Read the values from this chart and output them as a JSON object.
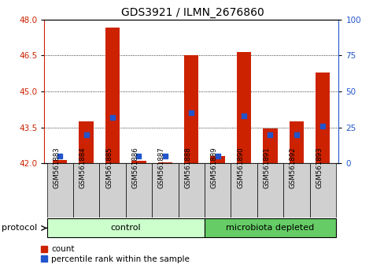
{
  "title": "GDS3921 / ILMN_2676860",
  "samples": [
    "GSM561883",
    "GSM561884",
    "GSM561885",
    "GSM561886",
    "GSM561887",
    "GSM561888",
    "GSM561889",
    "GSM561890",
    "GSM561891",
    "GSM561892",
    "GSM561893"
  ],
  "count_values": [
    42.15,
    43.75,
    47.65,
    42.1,
    42.05,
    46.5,
    42.3,
    46.65,
    43.45,
    43.75,
    45.8
  ],
  "percentile_values": [
    5,
    20,
    32,
    5,
    5,
    35,
    5,
    33,
    20,
    20,
    26
  ],
  "ylim_left": [
    42,
    48
  ],
  "ylim_right": [
    0,
    100
  ],
  "yticks_left": [
    42,
    43.5,
    45,
    46.5,
    48
  ],
  "yticks_right": [
    0,
    25,
    50,
    75,
    100
  ],
  "control_indices": [
    0,
    1,
    2,
    3,
    4,
    5
  ],
  "microbiota_indices": [
    6,
    7,
    8,
    9,
    10
  ],
  "control_color": "#ccffcc",
  "microbiota_color": "#66cc66",
  "bar_bottom": 42,
  "bar_width": 0.55,
  "count_color": "#cc2200",
  "percentile_color": "#2255cc",
  "background_color": "#ffffff",
  "label_color_left": "#cc2200",
  "label_color_right": "#2255cc",
  "sample_box_color": "#d0d0d0"
}
